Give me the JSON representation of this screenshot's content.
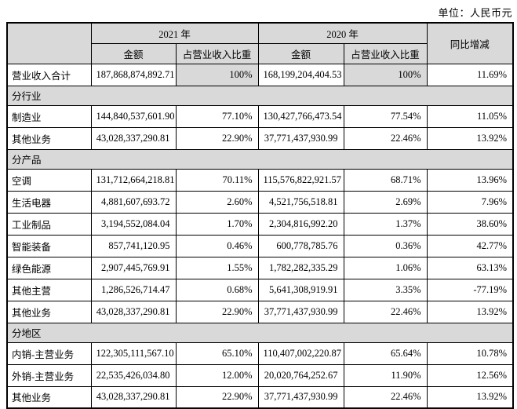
{
  "unit_label": "单位：人民币元",
  "colors": {
    "header_bg": "#d9d9d9",
    "border": "#000000",
    "text": "#000000",
    "page_bg": "#ffffff"
  },
  "table": {
    "header": {
      "year_2021": "2021 年",
      "year_2020": "2020 年",
      "col_amount": "金额",
      "col_ratio": "占营业收入比重",
      "col_yoy": "同比增减"
    },
    "rows": [
      {
        "type": "data",
        "label": "营业收入合计",
        "a2021": "187,868,874,892.71",
        "r2021": "100%",
        "a2020": "168,199,204,404.53",
        "r2020": "100%",
        "yoy": "11.69%",
        "shaded": true
      },
      {
        "type": "section",
        "label": "分行业"
      },
      {
        "type": "data",
        "label": "制造业",
        "a2021": "144,840,537,601.90",
        "r2021": "77.10%",
        "a2020": "130,427,766,473.54",
        "r2020": "77.54%",
        "yoy": "11.05%",
        "shaded": false
      },
      {
        "type": "data",
        "label": "其他业务",
        "a2021": "43,028,337,290.81",
        "r2021": "22.90%",
        "a2020": "37,771,437,930.99",
        "r2020": "22.46%",
        "yoy": "13.92%",
        "shaded": false
      },
      {
        "type": "section",
        "label": "分产品"
      },
      {
        "type": "data",
        "label": "空调",
        "a2021": "131,712,664,218.81",
        "r2021": "70.11%",
        "a2020": "115,576,822,921.57",
        "r2020": "68.71%",
        "yoy": "13.96%",
        "shaded": false
      },
      {
        "type": "data",
        "label": "生活电器",
        "a2021": "4,881,607,693.72",
        "r2021": "2.60%",
        "a2020": "4,521,756,518.81",
        "r2020": "2.69%",
        "yoy": "7.96%",
        "shaded": false
      },
      {
        "type": "data",
        "label": "工业制品",
        "a2021": "3,194,552,084.04",
        "r2021": "1.70%",
        "a2020": "2,304,816,992.20",
        "r2020": "1.37%",
        "yoy": "38.60%",
        "shaded": false
      },
      {
        "type": "data",
        "label": "智能装备",
        "a2021": "857,741,120.95",
        "r2021": "0.46%",
        "a2020": "600,778,785.76",
        "r2020": "0.36%",
        "yoy": "42.77%",
        "shaded": false
      },
      {
        "type": "data",
        "label": "绿色能源",
        "a2021": "2,907,445,769.91",
        "r2021": "1.55%",
        "a2020": "1,782,282,335.29",
        "r2020": "1.06%",
        "yoy": "63.13%",
        "shaded": false
      },
      {
        "type": "data",
        "label": "其他主营",
        "a2021": "1,286,526,714.47",
        "r2021": "0.68%",
        "a2020": "5,641,308,919.91",
        "r2020": "3.35%",
        "yoy": "-77.19%",
        "shaded": false
      },
      {
        "type": "data",
        "label": "其他业务",
        "a2021": "43,028,337,290.81",
        "r2021": "22.90%",
        "a2020": "37,771,437,930.99",
        "r2020": "22.46%",
        "yoy": "13.92%",
        "shaded": false
      },
      {
        "type": "section",
        "label": "分地区"
      },
      {
        "type": "data",
        "label": "内销-主营业务",
        "a2021": "122,305,111,567.10",
        "r2021": "65.10%",
        "a2020": "110,407,002,220.87",
        "r2020": "65.64%",
        "yoy": "10.78%",
        "shaded": false
      },
      {
        "type": "data",
        "label": "外销-主营业务",
        "a2021": "22,535,426,034.80",
        "r2021": "12.00%",
        "a2020": "20,020,764,252.67",
        "r2020": "11.90%",
        "yoy": "12.56%",
        "shaded": false
      },
      {
        "type": "data",
        "label": "其他业务",
        "a2021": "43,028,337,290.81",
        "r2021": "22.90%",
        "a2020": "37,771,437,930.99",
        "r2020": "22.46%",
        "yoy": "13.92%",
        "shaded": false
      }
    ]
  }
}
